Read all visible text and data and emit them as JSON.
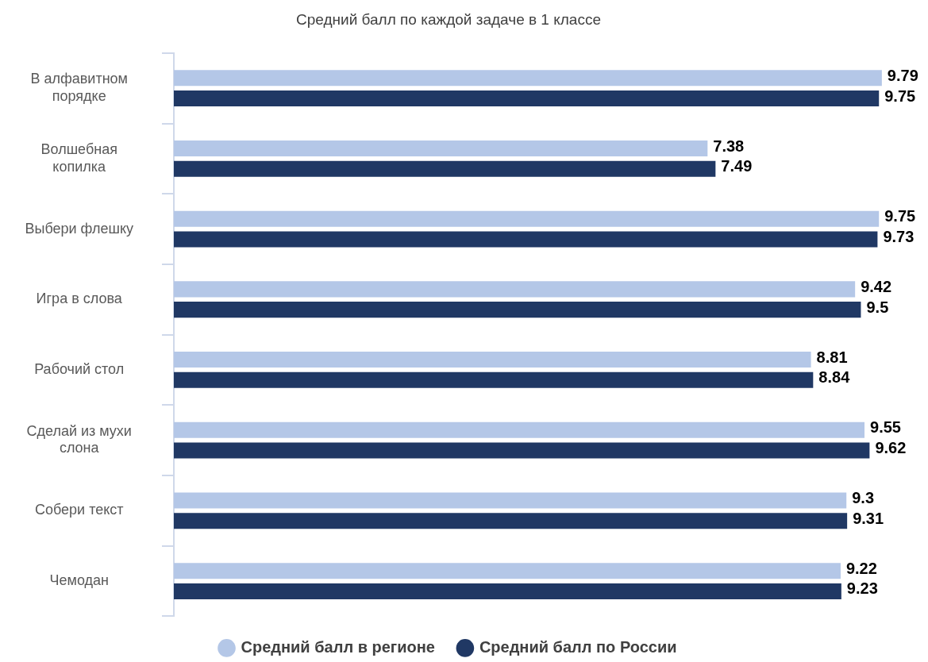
{
  "chart_data": {
    "type": "bar",
    "orientation": "horizontal",
    "title": "Средний балл по каждой задаче в 1 классе",
    "categories": [
      "В алфавитном порядке",
      "Волшебная копилка",
      "Выбери флешку",
      "Игра в слова",
      "Рабочий стол",
      "Сделай из мухи слона",
      "Собери текст",
      "Чемодан"
    ],
    "series": [
      {
        "name": "Средний балл в регионе",
        "color": "#b4c7e7",
        "values": [
          9.79,
          7.38,
          9.75,
          9.42,
          8.81,
          9.55,
          9.3,
          9.22
        ]
      },
      {
        "name": "Средний балл по России",
        "color": "#203864",
        "values": [
          9.75,
          7.49,
          9.73,
          9.5,
          8.84,
          9.62,
          9.31,
          9.23
        ]
      }
    ],
    "tick_labels": "y",
    "data_labels": true,
    "legend": "bottom"
  }
}
